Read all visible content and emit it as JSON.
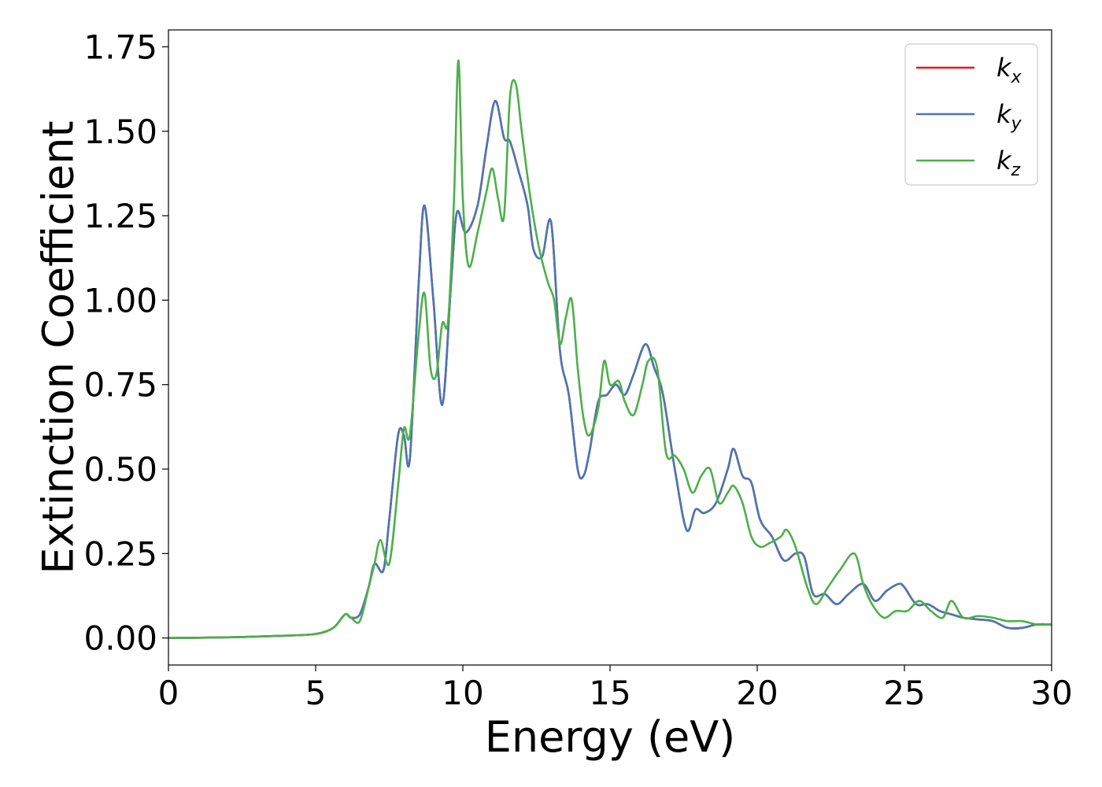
{
  "chart_data": {
    "type": "line",
    "title": "",
    "xlabel": "Energy (eV)",
    "ylabel": "Extinction Coefficient",
    "xlim": [
      0,
      30
    ],
    "ylim": [
      -0.08,
      1.8
    ],
    "xticks": [
      0,
      5,
      10,
      15,
      20,
      25,
      30
    ],
    "xtick_labels": [
      "0",
      "5",
      "10",
      "15",
      "20",
      "25",
      "30"
    ],
    "yticks": [
      0.0,
      0.25,
      0.5,
      0.75,
      1.0,
      1.25,
      1.5,
      1.75
    ],
    "ytick_labels": [
      "0.00",
      "0.25",
      "0.50",
      "0.75",
      "1.00",
      "1.25",
      "1.50",
      "1.75"
    ],
    "grid": false,
    "legend_position": "top-right",
    "series": [
      {
        "name": "k_x",
        "label_base": "k",
        "label_sub": "x",
        "color": "#e41a1c",
        "x": [
          0,
          2,
          4,
          5,
          5.6,
          6.0,
          6.2,
          6.5,
          6.8,
          7.0,
          7.3,
          7.5,
          7.8,
          8.0,
          8.2,
          8.5,
          8.7,
          9.0,
          9.3,
          9.6,
          9.8,
          10.1,
          10.5,
          10.8,
          11.1,
          11.4,
          11.6,
          11.9,
          12.2,
          12.4,
          12.7,
          13.0,
          13.3,
          13.6,
          13.9,
          14.1,
          14.3,
          14.6,
          14.9,
          15.2,
          15.5,
          15.8,
          16.2,
          16.5,
          16.8,
          17.2,
          17.6,
          17.9,
          18.2,
          18.6,
          19.0,
          19.2,
          19.5,
          19.8,
          20.1,
          20.5,
          20.9,
          21.3,
          21.6,
          21.9,
          22.3,
          22.7,
          23.1,
          23.6,
          24.0,
          24.4,
          24.8,
          25.0,
          25.4,
          25.8,
          26.2,
          26.6,
          27.0,
          27.5,
          28.0,
          28.5,
          29.0,
          29.5,
          30.0
        ],
        "y": [
          0.0,
          0.002,
          0.007,
          0.012,
          0.03,
          0.07,
          0.06,
          0.07,
          0.15,
          0.22,
          0.2,
          0.35,
          0.6,
          0.6,
          0.53,
          1.05,
          1.28,
          1.0,
          0.69,
          1.05,
          1.26,
          1.2,
          1.28,
          1.45,
          1.59,
          1.48,
          1.47,
          1.38,
          1.28,
          1.15,
          1.13,
          1.23,
          0.85,
          0.72,
          0.5,
          0.48,
          0.55,
          0.7,
          0.72,
          0.75,
          0.72,
          0.78,
          0.87,
          0.8,
          0.72,
          0.5,
          0.32,
          0.38,
          0.37,
          0.4,
          0.5,
          0.56,
          0.48,
          0.46,
          0.35,
          0.3,
          0.23,
          0.25,
          0.24,
          0.13,
          0.13,
          0.1,
          0.13,
          0.16,
          0.11,
          0.14,
          0.16,
          0.15,
          0.1,
          0.1,
          0.08,
          0.07,
          0.06,
          0.055,
          0.05,
          0.03,
          0.03,
          0.04,
          0.04
        ]
      },
      {
        "name": "k_y",
        "label_base": "k",
        "label_sub": "y",
        "color": "#4a77b4",
        "x": [
          0,
          2,
          4,
          5,
          5.6,
          6.0,
          6.2,
          6.5,
          6.8,
          7.0,
          7.3,
          7.5,
          7.8,
          8.0,
          8.2,
          8.5,
          8.7,
          9.0,
          9.3,
          9.6,
          9.8,
          10.1,
          10.5,
          10.8,
          11.1,
          11.4,
          11.6,
          11.9,
          12.2,
          12.4,
          12.7,
          13.0,
          13.3,
          13.6,
          13.9,
          14.1,
          14.3,
          14.6,
          14.9,
          15.2,
          15.5,
          15.8,
          16.2,
          16.5,
          16.8,
          17.2,
          17.6,
          17.9,
          18.2,
          18.6,
          19.0,
          19.2,
          19.5,
          19.8,
          20.1,
          20.5,
          20.9,
          21.3,
          21.6,
          21.9,
          22.3,
          22.7,
          23.1,
          23.6,
          24.0,
          24.4,
          24.8,
          25.0,
          25.4,
          25.8,
          26.2,
          26.6,
          27.0,
          27.5,
          28.0,
          28.5,
          29.0,
          29.5,
          30.0
        ],
        "y": [
          0.0,
          0.002,
          0.007,
          0.012,
          0.03,
          0.07,
          0.06,
          0.07,
          0.15,
          0.22,
          0.2,
          0.35,
          0.6,
          0.6,
          0.53,
          1.05,
          1.28,
          1.0,
          0.69,
          1.05,
          1.26,
          1.2,
          1.28,
          1.45,
          1.59,
          1.48,
          1.47,
          1.38,
          1.28,
          1.15,
          1.13,
          1.23,
          0.85,
          0.72,
          0.5,
          0.48,
          0.55,
          0.7,
          0.72,
          0.75,
          0.72,
          0.78,
          0.87,
          0.8,
          0.72,
          0.5,
          0.32,
          0.38,
          0.37,
          0.4,
          0.5,
          0.56,
          0.48,
          0.46,
          0.35,
          0.3,
          0.23,
          0.25,
          0.24,
          0.13,
          0.13,
          0.1,
          0.13,
          0.16,
          0.11,
          0.14,
          0.16,
          0.15,
          0.1,
          0.1,
          0.08,
          0.07,
          0.06,
          0.055,
          0.05,
          0.03,
          0.03,
          0.04,
          0.04
        ]
      },
      {
        "name": "k_z",
        "label_base": "k",
        "label_sub": "z",
        "color": "#4daf4a",
        "x": [
          0,
          2,
          4,
          5,
          5.6,
          6.0,
          6.2,
          6.5,
          6.8,
          7.0,
          7.2,
          7.5,
          7.8,
          8.0,
          8.2,
          8.5,
          8.7,
          8.9,
          9.1,
          9.3,
          9.5,
          9.7,
          9.85,
          10.0,
          10.2,
          10.5,
          10.8,
          11.0,
          11.2,
          11.4,
          11.6,
          11.8,
          12.0,
          12.3,
          12.6,
          12.9,
          13.1,
          13.3,
          13.5,
          13.7,
          13.9,
          14.1,
          14.3,
          14.6,
          14.8,
          15.0,
          15.3,
          15.5,
          15.8,
          16.1,
          16.3,
          16.6,
          16.9,
          17.2,
          17.5,
          17.8,
          18.1,
          18.4,
          18.7,
          19.0,
          19.2,
          19.5,
          19.8,
          20.1,
          20.4,
          20.8,
          21.0,
          21.3,
          21.7,
          22.0,
          22.4,
          22.8,
          23.3,
          23.6,
          23.9,
          24.3,
          24.7,
          25.1,
          25.5,
          25.9,
          26.3,
          26.6,
          27.0,
          27.5,
          28.0,
          28.5,
          29.0,
          29.5,
          30.0
        ],
        "y": [
          0.0,
          0.002,
          0.007,
          0.012,
          0.03,
          0.07,
          0.06,
          0.05,
          0.15,
          0.22,
          0.29,
          0.22,
          0.45,
          0.62,
          0.6,
          0.9,
          1.02,
          0.8,
          0.78,
          0.93,
          0.94,
          1.3,
          1.71,
          1.3,
          1.1,
          1.2,
          1.32,
          1.39,
          1.3,
          1.25,
          1.6,
          1.64,
          1.5,
          1.3,
          1.15,
          1.05,
          1.0,
          0.87,
          0.95,
          1.0,
          0.8,
          0.65,
          0.6,
          0.68,
          0.82,
          0.75,
          0.76,
          0.7,
          0.66,
          0.75,
          0.82,
          0.8,
          0.55,
          0.54,
          0.5,
          0.43,
          0.48,
          0.5,
          0.4,
          0.43,
          0.45,
          0.4,
          0.3,
          0.27,
          0.28,
          0.3,
          0.32,
          0.27,
          0.15,
          0.1,
          0.15,
          0.2,
          0.25,
          0.16,
          0.1,
          0.06,
          0.08,
          0.08,
          0.11,
          0.08,
          0.06,
          0.11,
          0.06,
          0.065,
          0.06,
          0.05,
          0.05,
          0.04,
          0.04
        ]
      }
    ]
  }
}
